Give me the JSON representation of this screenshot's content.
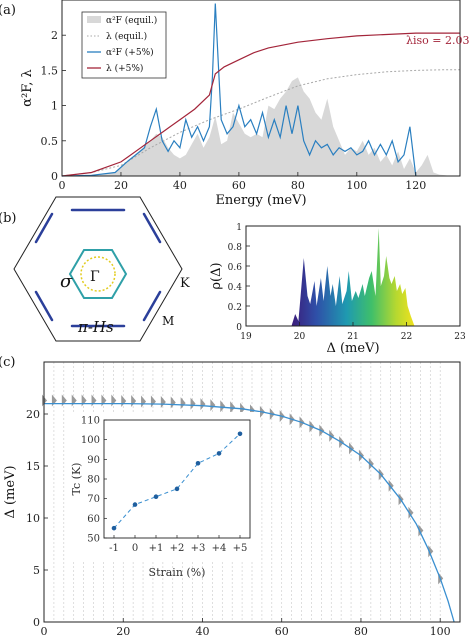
{
  "panel_labels": [
    "(a)",
    "(b)",
    "(c)"
  ],
  "colors": {
    "equil_fill": "#d8d8d8",
    "equil_lambda": "#a8a8a8",
    "strained_a2f": "#2a7fc0",
    "strained_lambda": "#a3253a",
    "c_curve": "#3a8fd0",
    "c_points": "#9a9a9a",
    "inset_line": "#3a8fd0",
    "inset_points": "#1f5f9f"
  },
  "chart_data": [
    {
      "type": "line",
      "panel": "(a)",
      "xlabel": "Energy (meV)",
      "ylabel": "α²F, λ",
      "xlim": [
        0,
        135
      ],
      "ylim": [
        0,
        2.5
      ],
      "xticks": [
        0,
        20,
        40,
        60,
        80,
        100,
        120
      ],
      "yticks": [
        0,
        0.5,
        1,
        1.5,
        2
      ],
      "ytick_labels": [
        "0",
        "0.5",
        "1",
        "1.5",
        "2"
      ],
      "legend_position": "top-left",
      "annotation": "λiso = 2.03",
      "series": [
        {
          "name": "α²F (equil.)",
          "style": "area",
          "x": [
            0,
            10,
            18,
            22,
            26,
            30,
            32,
            34,
            36,
            38,
            40,
            42,
            44,
            46,
            48,
            50,
            52,
            54,
            56,
            58,
            60,
            62,
            64,
            66,
            68,
            70,
            72,
            74,
            76,
            78,
            80,
            82,
            84,
            86,
            88,
            90,
            92,
            94,
            96,
            98,
            100,
            102,
            104,
            106,
            108,
            110,
            112,
            114,
            116,
            118,
            120,
            122,
            124,
            126,
            128,
            130,
            132
          ],
          "y": [
            0,
            0.01,
            0.05,
            0.2,
            0.35,
            0.5,
            0.6,
            0.55,
            0.4,
            0.3,
            0.25,
            0.3,
            0.45,
            0.6,
            0.4,
            0.55,
            0.85,
            0.45,
            0.5,
            0.9,
            0.75,
            0.6,
            0.55,
            0.6,
            0.55,
            1.0,
            0.95,
            1.1,
            1.2,
            1.35,
            1.4,
            1.2,
            1.1,
            0.9,
            0.8,
            1.1,
            0.7,
            0.5,
            0.3,
            0.4,
            0.35,
            0.5,
            0.3,
            0.4,
            0.2,
            0.3,
            0.15,
            0.35,
            0.1,
            0.25,
            0.05,
            0.15,
            0.3,
            0.05,
            0.02,
            0.01,
            0
          ]
        },
        {
          "name": "λ (equil.)",
          "style": "dotted",
          "x": [
            0,
            10,
            20,
            30,
            40,
            50,
            60,
            70,
            80,
            90,
            100,
            110,
            120,
            130,
            135
          ],
          "y": [
            0,
            0.05,
            0.15,
            0.4,
            0.62,
            0.8,
            0.95,
            1.12,
            1.28,
            1.38,
            1.44,
            1.48,
            1.5,
            1.51,
            1.51
          ]
        },
        {
          "name": "α²F (+5%)",
          "style": "line",
          "x": [
            0,
            10,
            18,
            22,
            25,
            28,
            30,
            32,
            34,
            36,
            38,
            40,
            42,
            44,
            46,
            48,
            50,
            51,
            52,
            53,
            54,
            56,
            58,
            60,
            62,
            64,
            66,
            68,
            70,
            72,
            74,
            76,
            78,
            80,
            82,
            84,
            86,
            88,
            90,
            92,
            94,
            96,
            98,
            100,
            102,
            104,
            106,
            108,
            110,
            112,
            114,
            116,
            118,
            120
          ],
          "y": [
            0,
            0.01,
            0.05,
            0.2,
            0.3,
            0.4,
            0.7,
            0.95,
            0.5,
            0.35,
            0.5,
            0.4,
            0.8,
            0.55,
            0.7,
            0.5,
            0.7,
            1.4,
            2.45,
            1.6,
            0.8,
            0.6,
            0.7,
            1.0,
            0.7,
            0.8,
            0.6,
            0.9,
            0.55,
            0.8,
            0.55,
            1.0,
            0.6,
            1.0,
            0.5,
            0.3,
            0.5,
            0.4,
            0.45,
            0.3,
            0.4,
            0.35,
            0.4,
            0.3,
            0.35,
            0.5,
            0.3,
            0.45,
            0.3,
            0.5,
            0.2,
            0.3,
            0.7,
            0
          ]
        },
        {
          "name": "λ (+5%)",
          "style": "line",
          "x": [
            0,
            10,
            20,
            30,
            35,
            40,
            45,
            50,
            52,
            55,
            60,
            65,
            70,
            80,
            90,
            100,
            110,
            120,
            130,
            135
          ],
          "y": [
            0,
            0.05,
            0.2,
            0.5,
            0.65,
            0.8,
            0.95,
            1.15,
            1.45,
            1.55,
            1.65,
            1.75,
            1.82,
            1.9,
            1.95,
            1.99,
            2.01,
            2.03,
            2.03,
            2.03
          ]
        }
      ]
    },
    {
      "type": "area",
      "panel": "(b) right",
      "xlabel": "Δ (meV)",
      "ylabel": "ρ(Δ)",
      "xlim": [
        19,
        23
      ],
      "ylim": [
        0,
        1
      ],
      "xticks": [
        19,
        20,
        21,
        22,
        23
      ],
      "yticks": [
        0,
        0.2,
        0.4,
        0.6,
        0.8,
        1
      ],
      "ytick_labels": [
        "0",
        "0.2",
        "0.4",
        "0.6",
        "0.8",
        "1"
      ],
      "colormap": "viridis-like, by Δ",
      "x": [
        19.85,
        19.92,
        19.98,
        20.02,
        20.08,
        20.15,
        20.2,
        20.28,
        20.32,
        20.4,
        20.45,
        20.52,
        20.58,
        20.62,
        20.68,
        20.75,
        20.8,
        20.88,
        20.92,
        20.98,
        21.05,
        21.1,
        21.18,
        21.22,
        21.3,
        21.35,
        21.42,
        21.48,
        21.52,
        21.58,
        21.62,
        21.68,
        21.72,
        21.78,
        21.82,
        21.88,
        21.92,
        21.98,
        22.02,
        22.08,
        22.15
      ],
      "y": [
        0,
        0.12,
        0.05,
        0.3,
        0.68,
        0.3,
        0.22,
        0.45,
        0.2,
        0.48,
        0.25,
        0.6,
        0.3,
        0.42,
        0.2,
        0.5,
        0.22,
        0.35,
        0.55,
        0.25,
        0.35,
        0.28,
        0.42,
        0.3,
        0.48,
        0.55,
        0.3,
        0.98,
        0.4,
        0.5,
        0.7,
        0.48,
        0.42,
        0.5,
        0.35,
        0.42,
        0.32,
        0.38,
        0.2,
        0.1,
        0
      ]
    },
    {
      "type": "scatter",
      "panel": "(c)",
      "xlabel": "",
      "ylabel": "Δ (meV)",
      "xlim": [
        0,
        105
      ],
      "ylim": [
        0,
        25
      ],
      "xticks": [
        0,
        20,
        40,
        60,
        80,
        100
      ],
      "yticks": [
        0,
        5,
        10,
        15,
        20
      ],
      "fit_curve": {
        "x": [
          0,
          10,
          20,
          30,
          40,
          50,
          55,
          60,
          65,
          70,
          75,
          80,
          85,
          90,
          94,
          97,
          100,
          102,
          103.5
        ],
        "y": [
          21.0,
          21.0,
          21.0,
          20.95,
          20.8,
          20.5,
          20.2,
          19.8,
          19.2,
          18.4,
          17.3,
          16.0,
          14.2,
          11.8,
          9.4,
          7.0,
          4.2,
          2.0,
          0
        ]
      },
      "points": {
        "x": [
          0,
          2.5,
          5,
          7.5,
          10,
          12.5,
          15,
          17.5,
          20,
          22.5,
          25,
          27.5,
          30,
          32.5,
          35,
          37.5,
          40,
          42.5,
          45,
          47.5,
          50,
          52.5,
          55,
          57.5,
          60,
          62.5,
          65,
          67.5,
          70,
          72.5,
          75,
          77.5,
          80,
          82.5,
          85,
          87.5,
          90,
          92.5,
          95,
          97.5,
          100
        ],
        "y": [
          21.3,
          21.3,
          21.3,
          21.3,
          21.3,
          21.3,
          21.3,
          21.3,
          21.25,
          21.25,
          21.2,
          21.2,
          21.15,
          21.1,
          21.05,
          21.0,
          20.95,
          20.85,
          20.75,
          20.65,
          20.5,
          20.35,
          20.2,
          20.0,
          19.8,
          19.5,
          19.2,
          18.8,
          18.4,
          17.9,
          17.3,
          16.7,
          16.0,
          15.2,
          14.2,
          13.1,
          11.8,
          10.5,
          8.8,
          6.8,
          4.2
        ]
      }
    },
    {
      "type": "line",
      "panel": "(c) inset",
      "xlabel": "Strain (%)",
      "ylabel": "Tc (K)",
      "categories": [
        "-1",
        "0",
        "+1",
        "+2",
        "+3",
        "+4",
        "+5"
      ],
      "values": [
        55,
        67,
        71,
        75,
        88,
        93,
        103
      ],
      "ylim": [
        50,
        110
      ],
      "yticks": [
        50,
        60,
        70,
        80,
        90,
        100,
        110
      ]
    }
  ],
  "panel_b": {
    "labels": [
      "σ",
      "Γ",
      "K",
      "M",
      "π-Hs"
    ]
  }
}
